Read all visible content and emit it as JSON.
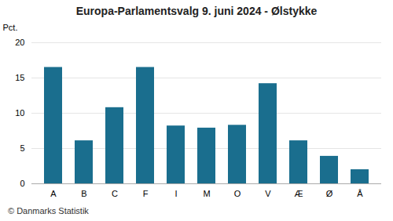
{
  "chart_data": {
    "type": "bar",
    "title": "Europa-Parlamentsvalg 9. juni 2024 - Ølstykke",
    "ylabel": "Pct.",
    "categories": [
      "A",
      "B",
      "C",
      "F",
      "I",
      "M",
      "O",
      "V",
      "Æ",
      "Ø",
      "Å"
    ],
    "values": [
      16.5,
      6.1,
      10.8,
      16.5,
      8.2,
      7.9,
      8.3,
      14.2,
      6.1,
      3.9,
      2.0
    ],
    "color": "#1a6e8e",
    "ylim": [
      0,
      20
    ],
    "yticks": [
      0,
      5,
      10,
      15,
      20
    ],
    "grid": true,
    "footer": "© Danmarks Statistik"
  }
}
